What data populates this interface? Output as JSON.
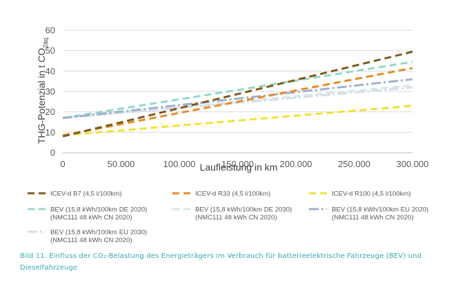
{
  "chart_data": {
    "type": "line",
    "ylabel_main": "THG-Potenzial in t CO",
    "ylabel_sub": "2äq",
    "xlabel": "Laufleistung in km",
    "xlim": [
      0,
      300000
    ],
    "ylim": [
      0,
      60
    ],
    "x_ticks": [
      "0",
      "50.000",
      "100.000",
      "150.000",
      "200.000",
      "250.000",
      "300.000"
    ],
    "y_ticks": [
      "0",
      "10",
      "20",
      "30",
      "40",
      "50",
      "60"
    ],
    "grid": true,
    "legend_position": "bottom",
    "x": [
      0,
      300000
    ],
    "series": [
      {
        "name": "ICEV-d B7 (4,5 l/100km)",
        "name2": "",
        "color": "#7f5a1c",
        "dash": "10,6",
        "width": 3,
        "values": [
          8.0,
          49.5
        ]
      },
      {
        "name": "ICEV-d R33 (4,5 l/100km)",
        "name2": "",
        "color": "#e58c22",
        "dash": "10,6",
        "width": 3,
        "values": [
          8.5,
          41.5
        ]
      },
      {
        "name": "ICEV-d R100 (4,5 l/100km)",
        "name2": "",
        "color": "#f2e22c",
        "dash": "10,6",
        "width": 3,
        "values": [
          8.5,
          23.0
        ]
      },
      {
        "name": "BEV (15,8 kWh/100km DE 2020)",
        "name2": "(NMC111 48 kWh CN 2020)",
        "color": "#93d8c9",
        "dash": "10,6",
        "width": 3,
        "values": [
          17.0,
          44.5
        ]
      },
      {
        "name": "BEV (15,8 kWh/100km DE 2030)",
        "name2": "(NMC111 48 kWh CN 2020)",
        "color": "#d2e9e4",
        "dash": "10,6",
        "width": 3,
        "values": [
          17.0,
          33.0
        ]
      },
      {
        "name": "BEV (15,8 kWh/100km EU 2020)",
        "name2": "(NMC111 48 kWh CN 2020)",
        "color": "#9fb0d0",
        "dash": "14,4,3,4",
        "width": 3,
        "values": [
          17.0,
          36.0
        ]
      },
      {
        "name": "BEV (15,8 kWh/100km EU 2030)",
        "name2": "(NMC111 48 kWh CN 2020)",
        "color": "#d7dbea",
        "dash": "14,4,3,4",
        "width": 3,
        "values": [
          17.0,
          32.0
        ]
      }
    ]
  },
  "caption": "Bild 11. Einfluss der CO₂-Belastung des Energieträgers im Verbrauch für batterieelektrische Fahrzeuge (BEV) und Dieselfahrzeuge"
}
